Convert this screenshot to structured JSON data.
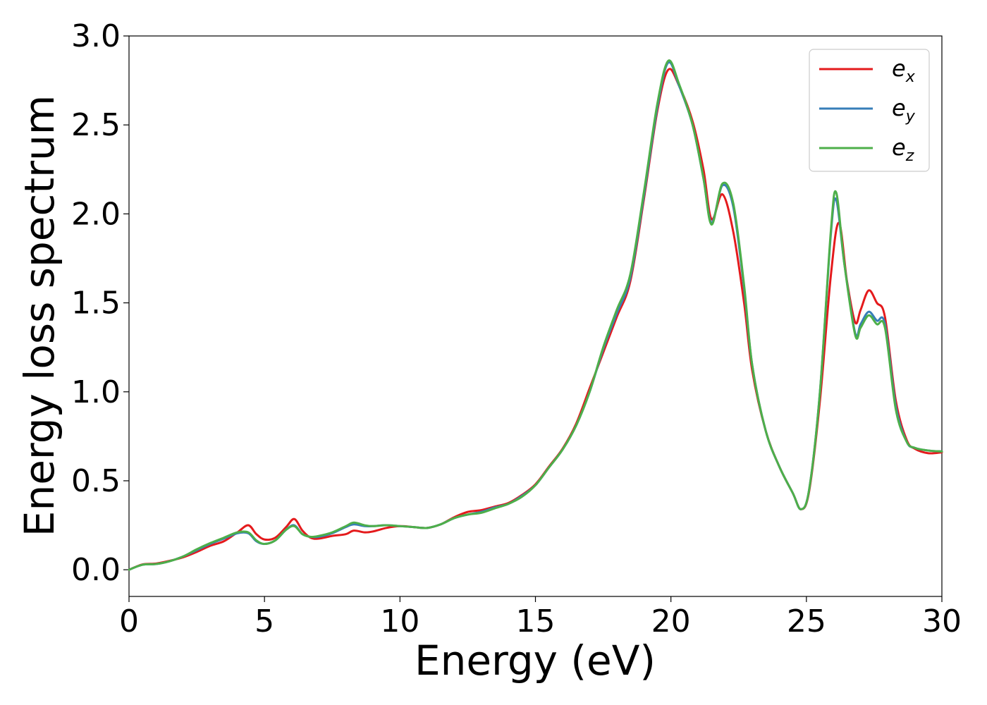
{
  "chart_data": {
    "type": "line",
    "title": "",
    "xlabel": "Energy (eV)",
    "ylabel": "Energy loss spectrum",
    "xlim": [
      0,
      30
    ],
    "ylim": [
      -0.15,
      3.0
    ],
    "x_ticks": [
      0,
      5,
      10,
      15,
      20,
      25,
      30
    ],
    "y_ticks": [
      "0.0",
      "0.5",
      "1.0",
      "1.5",
      "2.0",
      "2.5",
      "3.0"
    ],
    "grid": false,
    "legend_position": "top-right",
    "series": [
      {
        "name": "e_x",
        "label_base": "e",
        "label_sub": "x",
        "color": "#e41a1c",
        "points": [
          [
            0,
            0
          ],
          [
            0.5,
            0.03
          ],
          [
            1,
            0.035
          ],
          [
            1.5,
            0.05
          ],
          [
            2,
            0.07
          ],
          [
            2.5,
            0.1
          ],
          [
            3,
            0.135
          ],
          [
            3.5,
            0.16
          ],
          [
            4,
            0.21
          ],
          [
            4.4,
            0.25
          ],
          [
            4.7,
            0.2
          ],
          [
            5,
            0.17
          ],
          [
            5.4,
            0.18
          ],
          [
            5.8,
            0.24
          ],
          [
            6.1,
            0.285
          ],
          [
            6.4,
            0.22
          ],
          [
            6.7,
            0.18
          ],
          [
            7,
            0.175
          ],
          [
            7.5,
            0.19
          ],
          [
            8,
            0.2
          ],
          [
            8.3,
            0.22
          ],
          [
            8.7,
            0.21
          ],
          [
            9,
            0.215
          ],
          [
            9.5,
            0.235
          ],
          [
            10,
            0.245
          ],
          [
            10.5,
            0.24
          ],
          [
            11,
            0.235
          ],
          [
            11.5,
            0.255
          ],
          [
            12,
            0.295
          ],
          [
            12.5,
            0.325
          ],
          [
            13,
            0.335
          ],
          [
            13.5,
            0.355
          ],
          [
            14,
            0.375
          ],
          [
            14.5,
            0.42
          ],
          [
            15,
            0.48
          ],
          [
            15.5,
            0.58
          ],
          [
            16,
            0.68
          ],
          [
            16.5,
            0.82
          ],
          [
            17,
            1.02
          ],
          [
            17.5,
            1.22
          ],
          [
            18,
            1.42
          ],
          [
            18.5,
            1.62
          ],
          [
            19,
            2.08
          ],
          [
            19.5,
            2.58
          ],
          [
            19.9,
            2.81
          ],
          [
            20.3,
            2.72
          ],
          [
            20.8,
            2.52
          ],
          [
            21.2,
            2.25
          ],
          [
            21.5,
            1.97
          ],
          [
            21.9,
            2.11
          ],
          [
            22.3,
            1.9
          ],
          [
            22.7,
            1.5
          ],
          [
            23,
            1.12
          ],
          [
            23.5,
            0.78
          ],
          [
            24,
            0.58
          ],
          [
            24.5,
            0.43
          ],
          [
            24.8,
            0.34
          ],
          [
            25.1,
            0.44
          ],
          [
            25.5,
            0.95
          ],
          [
            25.9,
            1.65
          ],
          [
            26.2,
            1.95
          ],
          [
            26.5,
            1.62
          ],
          [
            26.8,
            1.39
          ],
          [
            27,
            1.46
          ],
          [
            27.3,
            1.57
          ],
          [
            27.6,
            1.5
          ],
          [
            27.9,
            1.42
          ],
          [
            28.3,
            0.95
          ],
          [
            28.7,
            0.73
          ],
          [
            29,
            0.68
          ],
          [
            29.5,
            0.655
          ],
          [
            30,
            0.66
          ]
        ]
      },
      {
        "name": "e_y",
        "label_base": "e",
        "label_sub": "y",
        "color": "#377eb8",
        "points": [
          [
            0,
            0
          ],
          [
            0.5,
            0.028
          ],
          [
            1,
            0.032
          ],
          [
            1.5,
            0.048
          ],
          [
            2,
            0.075
          ],
          [
            2.5,
            0.11
          ],
          [
            3,
            0.145
          ],
          [
            3.5,
            0.175
          ],
          [
            4,
            0.205
          ],
          [
            4.4,
            0.205
          ],
          [
            4.7,
            0.16
          ],
          [
            5,
            0.145
          ],
          [
            5.4,
            0.165
          ],
          [
            5.8,
            0.225
          ],
          [
            6.1,
            0.25
          ],
          [
            6.4,
            0.2
          ],
          [
            6.7,
            0.185
          ],
          [
            7,
            0.185
          ],
          [
            7.5,
            0.205
          ],
          [
            8,
            0.24
          ],
          [
            8.3,
            0.255
          ],
          [
            8.7,
            0.245
          ],
          [
            9,
            0.245
          ],
          [
            9.5,
            0.25
          ],
          [
            10,
            0.245
          ],
          [
            10.5,
            0.24
          ],
          [
            11,
            0.235
          ],
          [
            11.5,
            0.255
          ],
          [
            12,
            0.29
          ],
          [
            12.5,
            0.31
          ],
          [
            13,
            0.325
          ],
          [
            13.5,
            0.35
          ],
          [
            14,
            0.37
          ],
          [
            14.5,
            0.415
          ],
          [
            15,
            0.475
          ],
          [
            15.5,
            0.575
          ],
          [
            16,
            0.675
          ],
          [
            16.5,
            0.81
          ],
          [
            17,
            1.0
          ],
          [
            17.5,
            1.24
          ],
          [
            18,
            1.44
          ],
          [
            18.5,
            1.64
          ],
          [
            19,
            2.1
          ],
          [
            19.5,
            2.6
          ],
          [
            19.9,
            2.85
          ],
          [
            20.3,
            2.72
          ],
          [
            20.8,
            2.5
          ],
          [
            21.2,
            2.2
          ],
          [
            21.5,
            1.95
          ],
          [
            21.9,
            2.16
          ],
          [
            22.3,
            2.04
          ],
          [
            22.7,
            1.58
          ],
          [
            23,
            1.15
          ],
          [
            23.5,
            0.78
          ],
          [
            24,
            0.58
          ],
          [
            24.5,
            0.43
          ],
          [
            24.8,
            0.34
          ],
          [
            25.1,
            0.45
          ],
          [
            25.5,
            1.0
          ],
          [
            25.9,
            1.88
          ],
          [
            26.1,
            2.08
          ],
          [
            26.4,
            1.72
          ],
          [
            26.8,
            1.33
          ],
          [
            27,
            1.38
          ],
          [
            27.3,
            1.45
          ],
          [
            27.6,
            1.4
          ],
          [
            27.9,
            1.38
          ],
          [
            28.3,
            0.92
          ],
          [
            28.7,
            0.72
          ],
          [
            29,
            0.685
          ],
          [
            29.5,
            0.67
          ],
          [
            30,
            0.665
          ]
        ]
      },
      {
        "name": "e_z",
        "label_base": "e",
        "label_sub": "z",
        "color": "#4daf4a",
        "points": [
          [
            0,
            0
          ],
          [
            0.5,
            0.028
          ],
          [
            1,
            0.032
          ],
          [
            1.5,
            0.048
          ],
          [
            2,
            0.075
          ],
          [
            2.5,
            0.115
          ],
          [
            3,
            0.15
          ],
          [
            3.5,
            0.18
          ],
          [
            4,
            0.21
          ],
          [
            4.4,
            0.21
          ],
          [
            4.7,
            0.165
          ],
          [
            5,
            0.145
          ],
          [
            5.4,
            0.165
          ],
          [
            5.8,
            0.225
          ],
          [
            6.1,
            0.245
          ],
          [
            6.4,
            0.2
          ],
          [
            6.7,
            0.185
          ],
          [
            7,
            0.19
          ],
          [
            7.5,
            0.21
          ],
          [
            8,
            0.245
          ],
          [
            8.3,
            0.265
          ],
          [
            8.7,
            0.25
          ],
          [
            9,
            0.245
          ],
          [
            9.5,
            0.25
          ],
          [
            10,
            0.245
          ],
          [
            10.5,
            0.24
          ],
          [
            11,
            0.235
          ],
          [
            11.5,
            0.255
          ],
          [
            12,
            0.29
          ],
          [
            12.5,
            0.31
          ],
          [
            13,
            0.32
          ],
          [
            13.5,
            0.345
          ],
          [
            14,
            0.37
          ],
          [
            14.5,
            0.41
          ],
          [
            15,
            0.475
          ],
          [
            15.5,
            0.575
          ],
          [
            16,
            0.675
          ],
          [
            16.5,
            0.81
          ],
          [
            17,
            1.0
          ],
          [
            17.5,
            1.25
          ],
          [
            18,
            1.46
          ],
          [
            18.5,
            1.66
          ],
          [
            19,
            2.12
          ],
          [
            19.5,
            2.62
          ],
          [
            19.9,
            2.86
          ],
          [
            20.3,
            2.73
          ],
          [
            20.8,
            2.5
          ],
          [
            21.2,
            2.2
          ],
          [
            21.5,
            1.94
          ],
          [
            21.9,
            2.17
          ],
          [
            22.3,
            2.06
          ],
          [
            22.7,
            1.6
          ],
          [
            23,
            1.15
          ],
          [
            23.5,
            0.78
          ],
          [
            24,
            0.58
          ],
          [
            24.5,
            0.43
          ],
          [
            24.8,
            0.34
          ],
          [
            25.1,
            0.45
          ],
          [
            25.5,
            1.0
          ],
          [
            25.9,
            1.9
          ],
          [
            26.1,
            2.12
          ],
          [
            26.4,
            1.72
          ],
          [
            26.8,
            1.32
          ],
          [
            27,
            1.36
          ],
          [
            27.3,
            1.43
          ],
          [
            27.6,
            1.38
          ],
          [
            27.9,
            1.36
          ],
          [
            28.3,
            0.9
          ],
          [
            28.7,
            0.72
          ],
          [
            29,
            0.685
          ],
          [
            29.5,
            0.67
          ],
          [
            30,
            0.665
          ]
        ]
      }
    ]
  }
}
